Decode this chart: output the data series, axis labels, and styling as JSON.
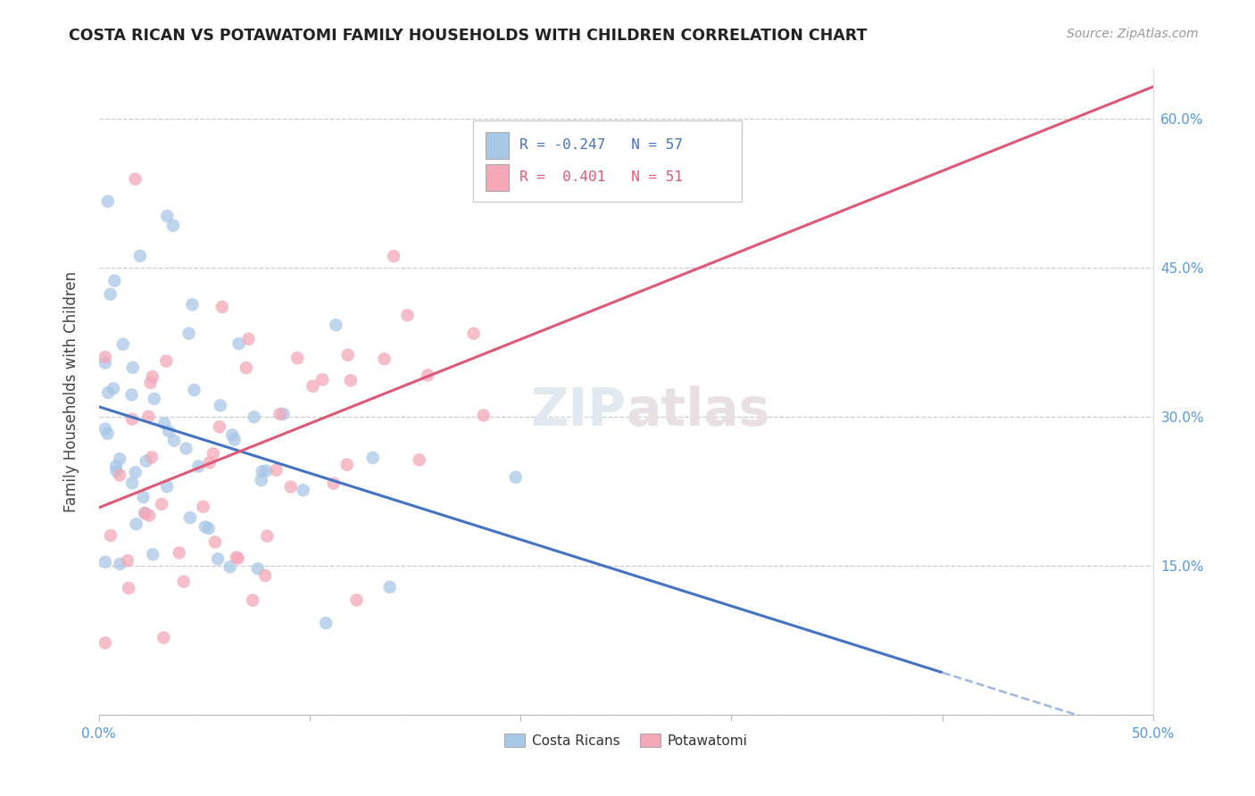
{
  "title": "COSTA RICAN VS POTAWATOMI FAMILY HOUSEHOLDS WITH CHILDREN CORRELATION CHART",
  "source": "Source: ZipAtlas.com",
  "ylabel": "Family Households with Children",
  "xlim": [
    0.0,
    0.5
  ],
  "ylim": [
    0.0,
    0.65
  ],
  "ytick_vals": [
    0.0,
    0.15,
    0.3,
    0.45,
    0.6
  ],
  "ytick_labels": [
    "",
    "15.0%",
    "30.0%",
    "45.0%",
    "60.0%"
  ],
  "xtick_vals": [
    0.0,
    0.1,
    0.2,
    0.3,
    0.4,
    0.5
  ],
  "xtick_labels": [
    "0.0%",
    "",
    "",
    "",
    "",
    "50.0%"
  ],
  "blue_color": "#A8C8E8",
  "pink_color": "#F4A8B8",
  "blue_line_color": "#4472C4",
  "pink_line_color": "#E05878",
  "blue_dash_color": "#A0B8E0",
  "watermark": "ZIPatlas",
  "blue_scatter_seed": 10,
  "pink_scatter_seed": 20
}
